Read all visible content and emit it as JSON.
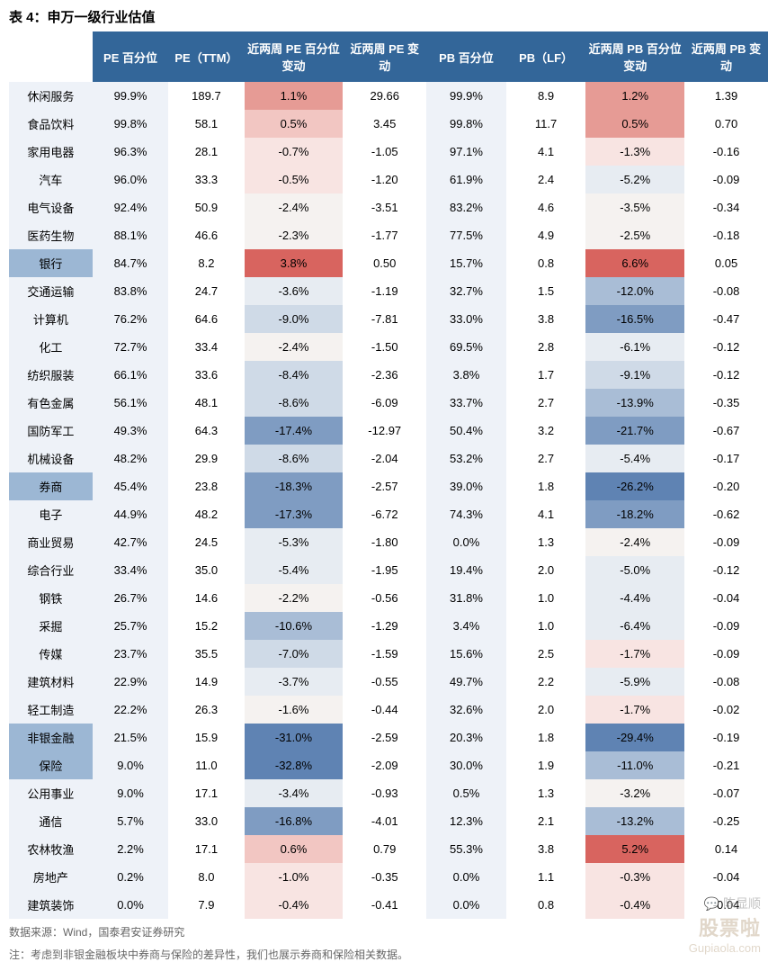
{
  "title": "表 4：申万一级行业估值",
  "columns": [
    "",
    "PE 百分位",
    "PE（TTM）",
    "近两周 PE 百分位变动",
    "近两周 PE 变动",
    "PB 百分位",
    "PB（LF）",
    "近两周 PB 百分位变动",
    "近两周 PB 变动"
  ],
  "col_widths": [
    "11%",
    "10%",
    "10%",
    "13%",
    "11%",
    "10.5%",
    "10.5%",
    "13%",
    "11%"
  ],
  "header_bg": "#336699",
  "header_fg": "#ffffff",
  "row_label_bg_default": "#eef2f8",
  "row_label_bg_highlight": "#9cb7d4",
  "pct_bg_default": "#eef2f8",
  "plain_bg": "#ffffff",
  "heat_colors": {
    "pos_strong": "#d8645f",
    "pos_med": "#e69b95",
    "pos_light": "#f2c6c2",
    "pos_faint": "#f8e4e2",
    "neutral": "#f5f2f0",
    "neg_faint": "#e7ecf2",
    "neg_light": "#cfdae7",
    "neg_med": "#a9bdd6",
    "neg_strong": "#7f9cc2",
    "neg_vstrong": "#5f83b3"
  },
  "rows": [
    {
      "label": "休闲服务",
      "lblbg": "#eef2f8",
      "pep": "99.9%",
      "pet": "189.7",
      "dpep": "1.1%",
      "dpep_bg": "#e69b95",
      "dpe": "29.66",
      "pbp": "99.9%",
      "pbl": "8.9",
      "dpbp": "1.2%",
      "dpbp_bg": "#e69b95",
      "dpb": "1.39"
    },
    {
      "label": "食品饮料",
      "lblbg": "#eef2f8",
      "pep": "99.8%",
      "pet": "58.1",
      "dpep": "0.5%",
      "dpep_bg": "#f2c6c2",
      "dpe": "3.45",
      "pbp": "99.8%",
      "pbl": "11.7",
      "dpbp": "0.5%",
      "dpbp_bg": "#e69b95",
      "dpb": "0.70"
    },
    {
      "label": "家用电器",
      "lblbg": "#eef2f8",
      "pep": "96.3%",
      "pet": "28.1",
      "dpep": "-0.7%",
      "dpep_bg": "#f8e4e2",
      "dpe": "-1.05",
      "pbp": "97.1%",
      "pbl": "4.1",
      "dpbp": "-1.3%",
      "dpbp_bg": "#f8e4e2",
      "dpb": "-0.16"
    },
    {
      "label": "汽车",
      "lblbg": "#eef2f8",
      "pep": "96.0%",
      "pet": "33.3",
      "dpep": "-0.5%",
      "dpep_bg": "#f8e4e2",
      "dpe": "-1.20",
      "pbp": "61.9%",
      "pbl": "2.4",
      "dpbp": "-5.2%",
      "dpbp_bg": "#e7ecf2",
      "dpb": "-0.09"
    },
    {
      "label": "电气设备",
      "lblbg": "#eef2f8",
      "pep": "92.4%",
      "pet": "50.9",
      "dpep": "-2.4%",
      "dpep_bg": "#f5f2f0",
      "dpe": "-3.51",
      "pbp": "83.2%",
      "pbl": "4.6",
      "dpbp": "-3.5%",
      "dpbp_bg": "#f5f2f0",
      "dpb": "-0.34"
    },
    {
      "label": "医药生物",
      "lblbg": "#eef2f8",
      "pep": "88.1%",
      "pet": "46.6",
      "dpep": "-2.3%",
      "dpep_bg": "#f5f2f0",
      "dpe": "-1.77",
      "pbp": "77.5%",
      "pbl": "4.9",
      "dpbp": "-2.5%",
      "dpbp_bg": "#f5f2f0",
      "dpb": "-0.18"
    },
    {
      "label": "银行",
      "lblbg": "#9cb7d4",
      "pep": "84.7%",
      "pet": "8.2",
      "dpep": "3.8%",
      "dpep_bg": "#d8645f",
      "dpe": "0.50",
      "pbp": "15.7%",
      "pbl": "0.8",
      "dpbp": "6.6%",
      "dpbp_bg": "#d8645f",
      "dpb": "0.05"
    },
    {
      "label": "交通运输",
      "lblbg": "#eef2f8",
      "pep": "83.8%",
      "pet": "24.7",
      "dpep": "-3.6%",
      "dpep_bg": "#e7ecf2",
      "dpe": "-1.19",
      "pbp": "32.7%",
      "pbl": "1.5",
      "dpbp": "-12.0%",
      "dpbp_bg": "#a9bdd6",
      "dpb": "-0.08"
    },
    {
      "label": "计算机",
      "lblbg": "#eef2f8",
      "pep": "76.2%",
      "pet": "64.6",
      "dpep": "-9.0%",
      "dpep_bg": "#cfdae7",
      "dpe": "-7.81",
      "pbp": "33.0%",
      "pbl": "3.8",
      "dpbp": "-16.5%",
      "dpbp_bg": "#7f9cc2",
      "dpb": "-0.47"
    },
    {
      "label": "化工",
      "lblbg": "#eef2f8",
      "pep": "72.7%",
      "pet": "33.4",
      "dpep": "-2.4%",
      "dpep_bg": "#f5f2f0",
      "dpe": "-1.50",
      "pbp": "69.5%",
      "pbl": "2.8",
      "dpbp": "-6.1%",
      "dpbp_bg": "#e7ecf2",
      "dpb": "-0.12"
    },
    {
      "label": "纺织服装",
      "lblbg": "#eef2f8",
      "pep": "66.1%",
      "pet": "33.6",
      "dpep": "-8.4%",
      "dpep_bg": "#cfdae7",
      "dpe": "-2.36",
      "pbp": "3.8%",
      "pbl": "1.7",
      "dpbp": "-9.1%",
      "dpbp_bg": "#cfdae7",
      "dpb": "-0.12"
    },
    {
      "label": "有色金属",
      "lblbg": "#eef2f8",
      "pep": "56.1%",
      "pet": "48.1",
      "dpep": "-8.6%",
      "dpep_bg": "#cfdae7",
      "dpe": "-6.09",
      "pbp": "33.7%",
      "pbl": "2.7",
      "dpbp": "-13.9%",
      "dpbp_bg": "#a9bdd6",
      "dpb": "-0.35"
    },
    {
      "label": "国防军工",
      "lblbg": "#eef2f8",
      "pep": "49.3%",
      "pet": "64.3",
      "dpep": "-17.4%",
      "dpep_bg": "#7f9cc2",
      "dpe": "-12.97",
      "pbp": "50.4%",
      "pbl": "3.2",
      "dpbp": "-21.7%",
      "dpbp_bg": "#7f9cc2",
      "dpb": "-0.67"
    },
    {
      "label": "机械设备",
      "lblbg": "#eef2f8",
      "pep": "48.2%",
      "pet": "29.9",
      "dpep": "-8.6%",
      "dpep_bg": "#cfdae7",
      "dpe": "-2.04",
      "pbp": "53.2%",
      "pbl": "2.7",
      "dpbp": "-5.4%",
      "dpbp_bg": "#e7ecf2",
      "dpb": "-0.17"
    },
    {
      "label": "券商",
      "lblbg": "#9cb7d4",
      "pep": "45.4%",
      "pet": "23.8",
      "dpep": "-18.3%",
      "dpep_bg": "#7f9cc2",
      "dpe": "-2.57",
      "pbp": "39.0%",
      "pbl": "1.8",
      "dpbp": "-26.2%",
      "dpbp_bg": "#5f83b3",
      "dpb": "-0.20"
    },
    {
      "label": "电子",
      "lblbg": "#eef2f8",
      "pep": "44.9%",
      "pet": "48.2",
      "dpep": "-17.3%",
      "dpep_bg": "#7f9cc2",
      "dpe": "-6.72",
      "pbp": "74.3%",
      "pbl": "4.1",
      "dpbp": "-18.2%",
      "dpbp_bg": "#7f9cc2",
      "dpb": "-0.62"
    },
    {
      "label": "商业贸易",
      "lblbg": "#eef2f8",
      "pep": "42.7%",
      "pet": "24.5",
      "dpep": "-5.3%",
      "dpep_bg": "#e7ecf2",
      "dpe": "-1.80",
      "pbp": "0.0%",
      "pbl": "1.3",
      "dpbp": "-2.4%",
      "dpbp_bg": "#f5f2f0",
      "dpb": "-0.09"
    },
    {
      "label": "综合行业",
      "lblbg": "#eef2f8",
      "pep": "33.4%",
      "pet": "35.0",
      "dpep": "-5.4%",
      "dpep_bg": "#e7ecf2",
      "dpe": "-1.95",
      "pbp": "19.4%",
      "pbl": "2.0",
      "dpbp": "-5.0%",
      "dpbp_bg": "#e7ecf2",
      "dpb": "-0.12"
    },
    {
      "label": "钢铁",
      "lblbg": "#eef2f8",
      "pep": "26.7%",
      "pet": "14.6",
      "dpep": "-2.2%",
      "dpep_bg": "#f5f2f0",
      "dpe": "-0.56",
      "pbp": "31.8%",
      "pbl": "1.0",
      "dpbp": "-4.4%",
      "dpbp_bg": "#e7ecf2",
      "dpb": "-0.04"
    },
    {
      "label": "采掘",
      "lblbg": "#eef2f8",
      "pep": "25.7%",
      "pet": "15.2",
      "dpep": "-10.6%",
      "dpep_bg": "#a9bdd6",
      "dpe": "-1.29",
      "pbp": "3.4%",
      "pbl": "1.0",
      "dpbp": "-6.4%",
      "dpbp_bg": "#e7ecf2",
      "dpb": "-0.09"
    },
    {
      "label": "传媒",
      "lblbg": "#eef2f8",
      "pep": "23.7%",
      "pet": "35.5",
      "dpep": "-7.0%",
      "dpep_bg": "#cfdae7",
      "dpe": "-1.59",
      "pbp": "15.6%",
      "pbl": "2.5",
      "dpbp": "-1.7%",
      "dpbp_bg": "#f8e4e2",
      "dpb": "-0.09"
    },
    {
      "label": "建筑材料",
      "lblbg": "#eef2f8",
      "pep": "22.9%",
      "pet": "14.9",
      "dpep": "-3.7%",
      "dpep_bg": "#e7ecf2",
      "dpe": "-0.55",
      "pbp": "49.7%",
      "pbl": "2.2",
      "dpbp": "-5.9%",
      "dpbp_bg": "#e7ecf2",
      "dpb": "-0.08"
    },
    {
      "label": "轻工制造",
      "lblbg": "#eef2f8",
      "pep": "22.2%",
      "pet": "26.3",
      "dpep": "-1.6%",
      "dpep_bg": "#f5f2f0",
      "dpe": "-0.44",
      "pbp": "32.6%",
      "pbl": "2.0",
      "dpbp": "-1.7%",
      "dpbp_bg": "#f8e4e2",
      "dpb": "-0.02"
    },
    {
      "label": "非银金融",
      "lblbg": "#9cb7d4",
      "pep": "21.5%",
      "pet": "15.9",
      "dpep": "-31.0%",
      "dpep_bg": "#5f83b3",
      "dpe": "-2.59",
      "pbp": "20.3%",
      "pbl": "1.8",
      "dpbp": "-29.4%",
      "dpbp_bg": "#5f83b3",
      "dpb": "-0.19"
    },
    {
      "label": "保险",
      "lblbg": "#9cb7d4",
      "pep": "9.0%",
      "pet": "11.0",
      "dpep": "-32.8%",
      "dpep_bg": "#5f83b3",
      "dpe": "-2.09",
      "pbp": "30.0%",
      "pbl": "1.9",
      "dpbp": "-11.0%",
      "dpbp_bg": "#a9bdd6",
      "dpb": "-0.21"
    },
    {
      "label": "公用事业",
      "lblbg": "#eef2f8",
      "pep": "9.0%",
      "pet": "17.1",
      "dpep": "-3.4%",
      "dpep_bg": "#e7ecf2",
      "dpe": "-0.93",
      "pbp": "0.5%",
      "pbl": "1.3",
      "dpbp": "-3.2%",
      "dpbp_bg": "#f5f2f0",
      "dpb": "-0.07"
    },
    {
      "label": "通信",
      "lblbg": "#eef2f8",
      "pep": "5.7%",
      "pet": "33.0",
      "dpep": "-16.8%",
      "dpep_bg": "#7f9cc2",
      "dpe": "-4.01",
      "pbp": "12.3%",
      "pbl": "2.1",
      "dpbp": "-13.2%",
      "dpbp_bg": "#a9bdd6",
      "dpb": "-0.25"
    },
    {
      "label": "农林牧渔",
      "lblbg": "#eef2f8",
      "pep": "2.2%",
      "pet": "17.1",
      "dpep": "0.6%",
      "dpep_bg": "#f2c6c2",
      "dpe": "0.79",
      "pbp": "55.3%",
      "pbl": "3.8",
      "dpbp": "5.2%",
      "dpbp_bg": "#d8645f",
      "dpb": "0.14"
    },
    {
      "label": "房地产",
      "lblbg": "#eef2f8",
      "pep": "0.2%",
      "pet": "8.0",
      "dpep": "-1.0%",
      "dpep_bg": "#f8e4e2",
      "dpe": "-0.35",
      "pbp": "0.0%",
      "pbl": "1.1",
      "dpbp": "-0.3%",
      "dpbp_bg": "#f8e4e2",
      "dpb": "-0.04"
    },
    {
      "label": "建筑装饰",
      "lblbg": "#eef2f8",
      "pep": "0.0%",
      "pet": "7.9",
      "dpep": "-0.4%",
      "dpep_bg": "#f8e4e2",
      "dpe": "-0.41",
      "pbp": "0.0%",
      "pbl": "0.8",
      "dpbp": "-0.4%",
      "dpbp_bg": "#f8e4e2",
      "dpb": "-0.04"
    }
  ],
  "footnote1": "数据来源：Wind，国泰君安证券研究",
  "footnote2": "注：考虑到非银金融板块中券商与保险的差异性，我们也展示券商和保险相关数据。",
  "watermark_top": "💬 陈显顺",
  "watermark_brand": "股票啦",
  "watermark_url": "Gupiaola.com"
}
